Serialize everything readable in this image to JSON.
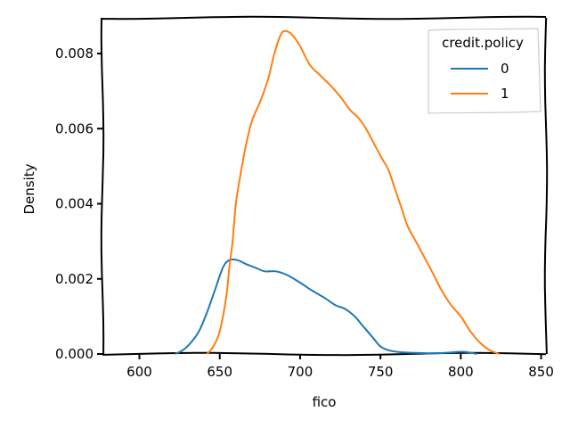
{
  "chart_data": {
    "type": "line",
    "title": "",
    "xlabel": "fico",
    "ylabel": "Density",
    "xlim": [
      577,
      853
    ],
    "ylim": [
      0,
      0.00895
    ],
    "xticks": [
      600,
      650,
      700,
      750,
      800,
      850
    ],
    "yticks": [
      0.0,
      0.002,
      0.004,
      0.006,
      0.008
    ],
    "xtick_labels": [
      "600",
      "650",
      "700",
      "750",
      "800",
      "850"
    ],
    "ytick_labels": [
      "0.000",
      "0.002",
      "0.004",
      "0.006",
      "0.008"
    ],
    "grid": false,
    "legend": {
      "title": "credit.policy",
      "placement": "top-right"
    },
    "series": [
      {
        "name": "0",
        "color": "#1f77b4",
        "points": [
          [
            622,
            0.0
          ],
          [
            627,
            0.0001
          ],
          [
            632,
            0.0003
          ],
          [
            637,
            0.0006
          ],
          [
            642,
            0.0011
          ],
          [
            647,
            0.0017
          ],
          [
            652,
            0.0023
          ],
          [
            656,
            0.0025
          ],
          [
            661,
            0.0025
          ],
          [
            666,
            0.0024
          ],
          [
            672,
            0.0023
          ],
          [
            678,
            0.0022
          ],
          [
            685,
            0.0022
          ],
          [
            692,
            0.0021
          ],
          [
            700,
            0.0019
          ],
          [
            707,
            0.0017
          ],
          [
            715,
            0.0015
          ],
          [
            722,
            0.0013
          ],
          [
            728,
            0.0012
          ],
          [
            734,
            0.001
          ],
          [
            738,
            0.0008
          ],
          [
            742,
            0.0006
          ],
          [
            746,
            0.0004
          ],
          [
            750,
            0.0002
          ],
          [
            755,
            0.0001
          ],
          [
            762,
            5e-05
          ],
          [
            770,
            3e-05
          ],
          [
            780,
            2e-05
          ],
          [
            790,
            3e-05
          ],
          [
            800,
            6e-05
          ],
          [
            805,
            4e-05
          ],
          [
            810,
            0.0
          ]
        ]
      },
      {
        "name": "1",
        "color": "#ff7f0e",
        "points": [
          [
            642,
            0.0
          ],
          [
            646,
            0.0002
          ],
          [
            650,
            0.0006
          ],
          [
            654,
            0.0015
          ],
          [
            656,
            0.0023
          ],
          [
            658,
            0.003
          ],
          [
            660,
            0.004
          ],
          [
            663,
            0.0048
          ],
          [
            666,
            0.0055
          ],
          [
            670,
            0.0062
          ],
          [
            675,
            0.0067
          ],
          [
            680,
            0.0073
          ],
          [
            684,
            0.008
          ],
          [
            688,
            0.0085
          ],
          [
            691,
            0.0086
          ],
          [
            695,
            0.0085
          ],
          [
            700,
            0.0082
          ],
          [
            706,
            0.0077
          ],
          [
            713,
            0.0074
          ],
          [
            720,
            0.0071
          ],
          [
            726,
            0.0068
          ],
          [
            731,
            0.0065
          ],
          [
            736,
            0.0063
          ],
          [
            741,
            0.006
          ],
          [
            746,
            0.0056
          ],
          [
            751,
            0.0052
          ],
          [
            755,
            0.0049
          ],
          [
            759,
            0.0044
          ],
          [
            763,
            0.0039
          ],
          [
            767,
            0.0034
          ],
          [
            772,
            0.003
          ],
          [
            777,
            0.0026
          ],
          [
            782,
            0.0022
          ],
          [
            788,
            0.0017
          ],
          [
            794,
            0.0013
          ],
          [
            800,
            0.001
          ],
          [
            806,
            0.0006
          ],
          [
            812,
            0.0003
          ],
          [
            818,
            0.0001
          ],
          [
            824,
            0.0
          ]
        ]
      }
    ]
  }
}
